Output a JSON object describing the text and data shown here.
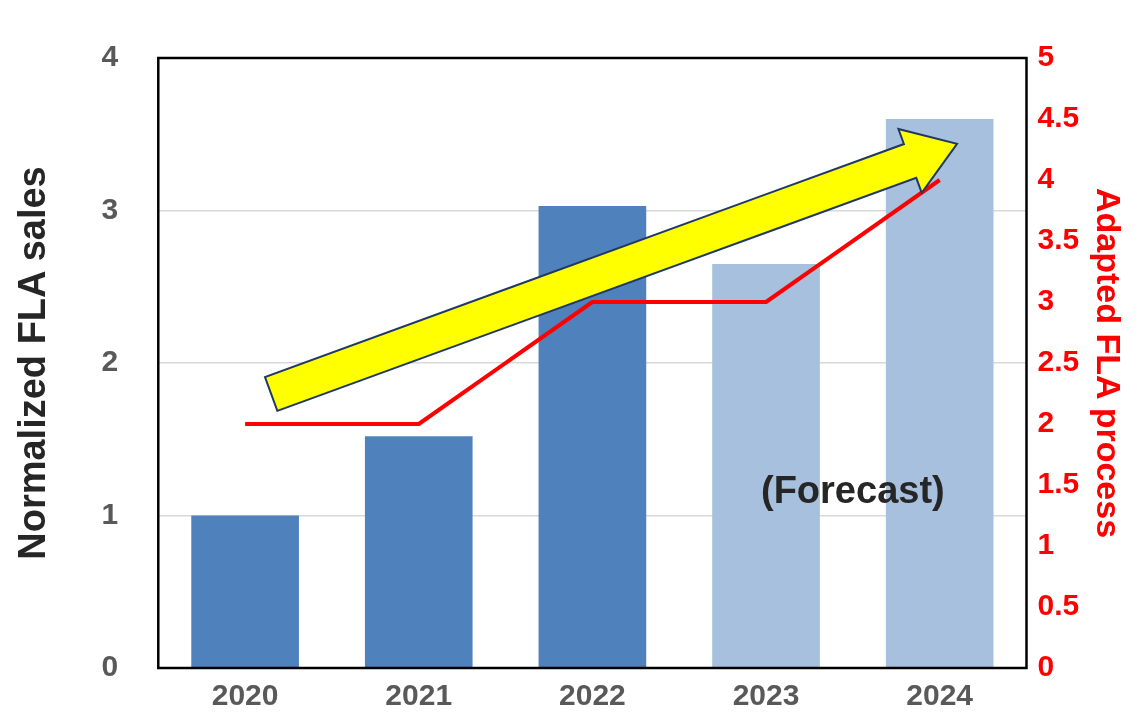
{
  "chart_data": {
    "type": "bar",
    "categories": [
      "2020",
      "2021",
      "2022",
      "2023",
      "2024"
    ],
    "ylabel": "Normalized FLA sales",
    "y2label": "Adapted FLA process",
    "ylim": [
      0,
      4
    ],
    "yticks": [
      0,
      1,
      2,
      3,
      4
    ],
    "y2lim": [
      0,
      5
    ],
    "y2ticks": [
      0,
      0.5,
      1,
      1.5,
      2,
      2.5,
      3,
      3.5,
      4,
      4.5,
      5
    ],
    "grid": "y",
    "legend": false,
    "annotations": [
      "(Forecast)"
    ],
    "series": [
      {
        "colors": [
          "#4f81bd",
          "#4f81bd",
          "#4f81bd",
          "#a7c0de",
          "#a7c0de"
        ],
        "values": [
          1,
          1.52,
          3.03,
          2.65,
          3.6
        ]
      },
      {
        "type": "line",
        "axis": "y2",
        "color": "#ff0000",
        "marker": "none",
        "line_style": "solid",
        "values": [
          2,
          2,
          3,
          3,
          4
        ]
      }
    ]
  }
}
